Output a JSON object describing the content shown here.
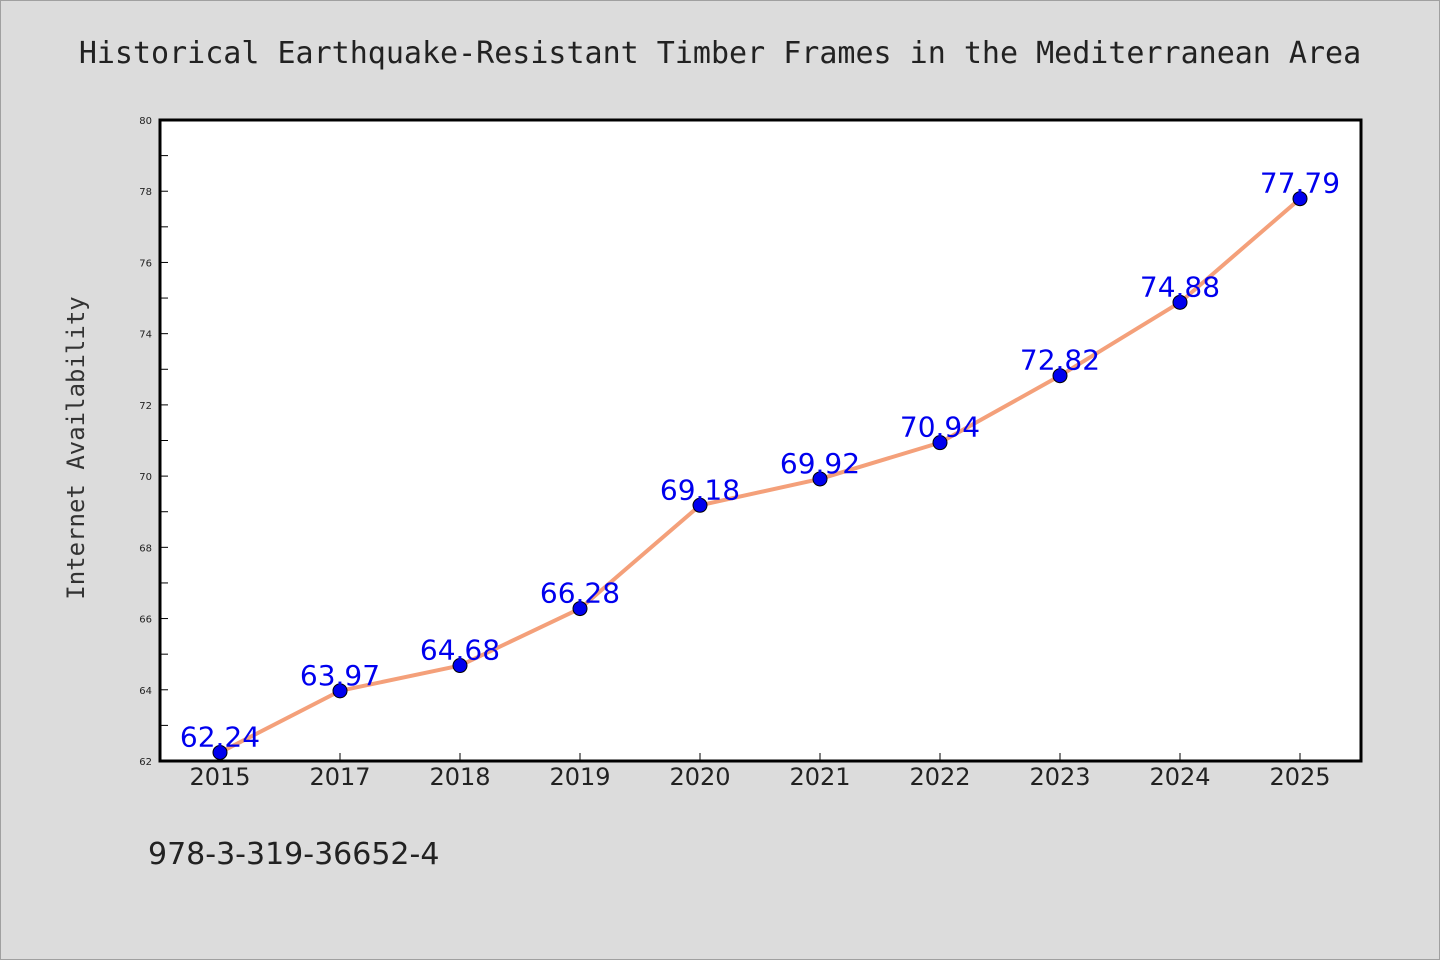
{
  "chart_data": {
    "type": "line",
    "title": "Historical Earthquake-Resistant Timber Frames in the Mediterranean Area",
    "xlabel": "",
    "ylabel": "Internet Availability",
    "categories": [
      "2015",
      "2017",
      "2018",
      "2019",
      "2020",
      "2021",
      "2022",
      "2023",
      "2024",
      "2025"
    ],
    "series": [
      {
        "values": [
          62.24,
          63.97,
          64.68,
          66.28,
          69.18,
          69.92,
          70.94,
          72.82,
          74.88,
          77.79
        ],
        "labels": [
          "62.24",
          "63.97",
          "64.68",
          "66.28",
          "69.18",
          "69.92",
          "70.94",
          "72.82",
          "74.88",
          "77.79"
        ],
        "line_color": "#f4a07a",
        "marker_color": "#0000ee",
        "label_color": "#0000ee"
      }
    ],
    "ylim": [
      62,
      80
    ],
    "yticks": [
      "62",
      "64",
      "66",
      "68",
      "70",
      "72",
      "74",
      "76",
      "78",
      "80"
    ],
    "grid": false,
    "legend": "none"
  },
  "footer_text": "978-3-319-36652-4",
  "colors": {
    "background": "#dcdcdc",
    "plot_background": "#ffffff"
  }
}
